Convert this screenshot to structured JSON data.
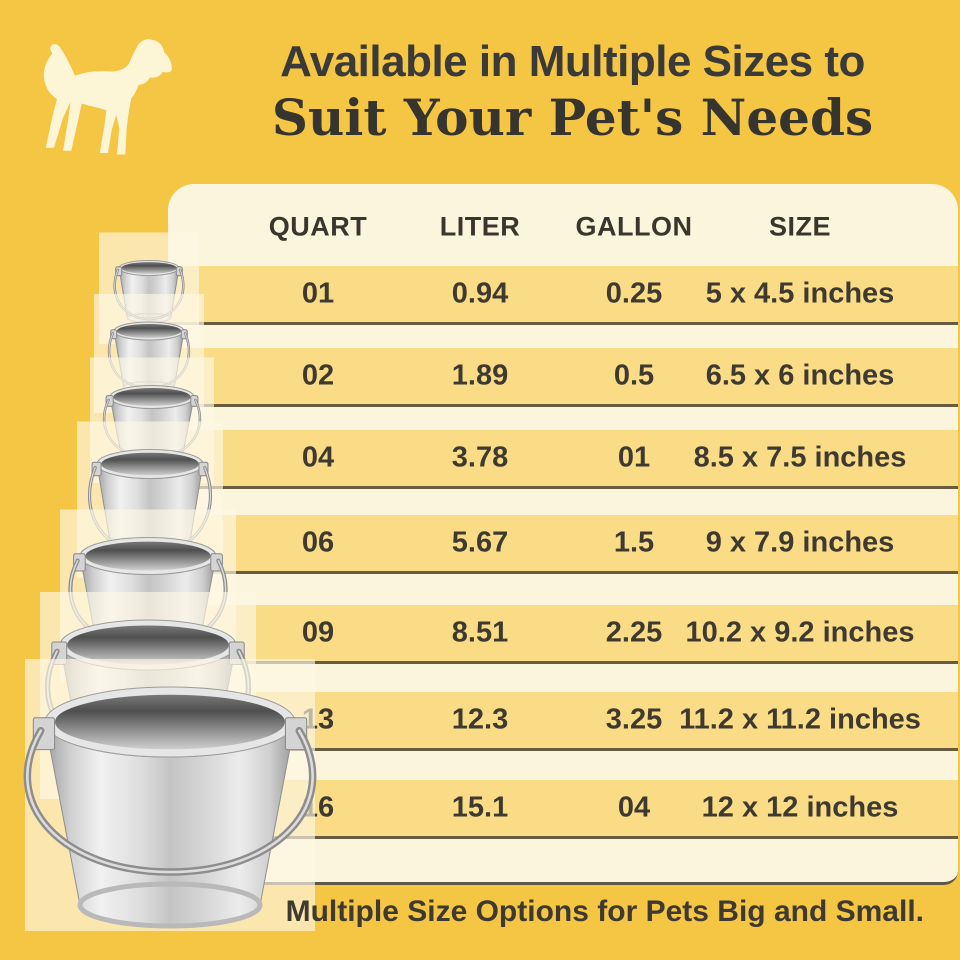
{
  "title": {
    "line1": "Available in Multiple Sizes to",
    "line2": "Suit Your Pet's Needs"
  },
  "table": {
    "headers": [
      "QUART",
      "LITER",
      "GALLON",
      "SIZE"
    ],
    "rows": [
      {
        "quart": "01",
        "liter": "0.94",
        "gallon": "0.25",
        "size": "5 x 4.5 inches"
      },
      {
        "quart": "02",
        "liter": "1.89",
        "gallon": "0.5",
        "size": "6.5 x 6 inches"
      },
      {
        "quart": "04",
        "liter": "3.78",
        "gallon": "01",
        "size": "8.5 x 7.5 inches"
      },
      {
        "quart": "06",
        "liter": "5.67",
        "gallon": "1.5",
        "size": "9 x 7.9 inches"
      },
      {
        "quart": "09",
        "liter": "8.51",
        "gallon": "2.25",
        "size": "10.2 x 9.2 inches"
      },
      {
        "quart": "13",
        "liter": "12.3",
        "gallon": "3.25",
        "size": "11.2 x 11.2 inches"
      },
      {
        "quart": "16",
        "liter": "15.1",
        "gallon": "04",
        "size": "12 x 12 inches"
      }
    ]
  },
  "footer": {
    "caption": "Multiple Size Options for Pets Big and Small."
  },
  "icons": {
    "dog": "dog-silhouette",
    "buckets": "stainless-steel-pet-bucket-stack"
  },
  "colors": {
    "background": "#f5c544",
    "row_band": "#f9dc85",
    "panel": "#fcf5dd",
    "text": "#3e3a31"
  }
}
